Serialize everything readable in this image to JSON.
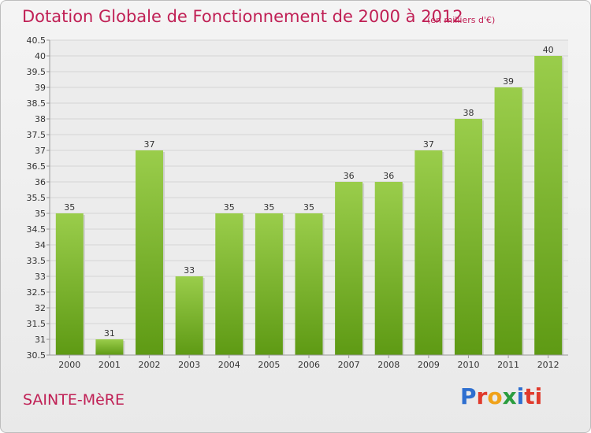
{
  "title": "Dotation Globale de Fonctionnement de 2000 à 2012",
  "subtitle": "(en milliers d'€)",
  "commune": "SAINTE-MèRE",
  "logo": {
    "letters": [
      "P",
      "r",
      "o",
      "x",
      "i",
      "ti"
    ]
  },
  "colors": {
    "title": "#c02055",
    "bar_top": "#9acd4b",
    "bar_bottom": "#5e9a14"
  },
  "chart_data": {
    "type": "bar",
    "categories": [
      "2000",
      "2001",
      "2002",
      "2003",
      "2004",
      "2005",
      "2006",
      "2007",
      "2008",
      "2009",
      "2010",
      "2011",
      "2012"
    ],
    "values": [
      35,
      31,
      37,
      33,
      35,
      35,
      35,
      36,
      36,
      37,
      38,
      39,
      40
    ],
    "ylim": [
      30.5,
      40.5
    ],
    "yticks": [
      "30.5",
      "31",
      "31.5",
      "32",
      "32.5",
      "33",
      "33.5",
      "34",
      "34.5",
      "35",
      "35.5",
      "36",
      "36.5",
      "37",
      "37.5",
      "38",
      "38.5",
      "39",
      "39.5",
      "40",
      "40.5"
    ],
    "grid": true,
    "xlabel": "",
    "ylabel": ""
  }
}
